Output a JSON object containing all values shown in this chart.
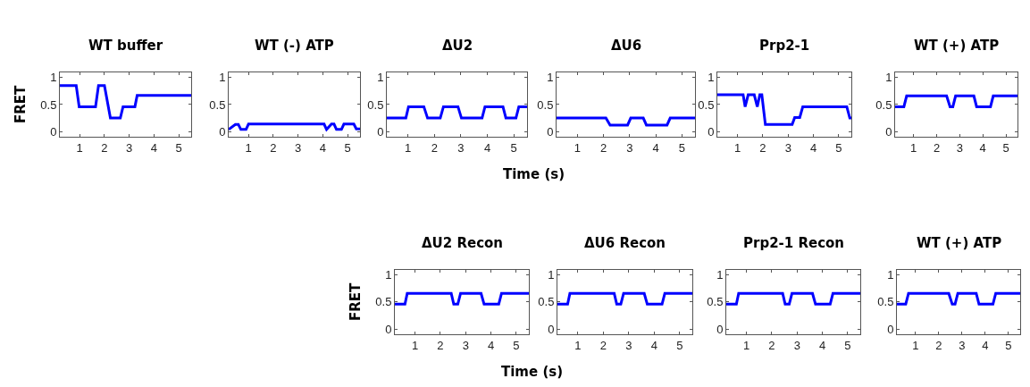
{
  "chart_data": [
    {
      "type": "line",
      "title": "WT buffer",
      "ylabel": "FRET",
      "xlim": [
        0.2,
        5.5
      ],
      "ylim": [
        -0.1,
        1.1
      ],
      "xticks": [
        1,
        2,
        3,
        4,
        5
      ],
      "yticks": [
        0,
        0.5,
        1
      ],
      "x": [
        0.2,
        0.86,
        0.98,
        1.64,
        1.76,
        2.0,
        2.24,
        2.64,
        2.75,
        3.23,
        3.32,
        5.5
      ],
      "series": [
        {
          "color": "#0000ff",
          "values": [
            0.85,
            0.85,
            0.46,
            0.46,
            0.85,
            0.85,
            0.25,
            0.25,
            0.46,
            0.46,
            0.67,
            0.67
          ]
        }
      ]
    },
    {
      "type": "line",
      "title": "WT (-) ATP",
      "xlim": [
        0.2,
        5.5
      ],
      "ylim": [
        -0.1,
        1.1
      ],
      "xticks": [
        1,
        2,
        3,
        4,
        5
      ],
      "yticks": [
        0,
        0.5,
        1
      ],
      "x": [
        0.2,
        0.47,
        0.59,
        0.69,
        0.9,
        1.0,
        4.05,
        4.15,
        4.35,
        4.45,
        4.55,
        4.75,
        4.85,
        5.25,
        5.35,
        5.5
      ],
      "series": [
        {
          "color": "#0000ff",
          "values": [
            0.04,
            0.13,
            0.13,
            0.04,
            0.04,
            0.14,
            0.14,
            0.04,
            0.14,
            0.14,
            0.04,
            0.04,
            0.14,
            0.14,
            0.05,
            0.05
          ]
        }
      ]
    },
    {
      "type": "line",
      "title": "ΔU2",
      "xlim": [
        0.2,
        5.5
      ],
      "ylim": [
        -0.1,
        1.1
      ],
      "xticks": [
        1,
        2,
        3,
        4,
        5
      ],
      "yticks": [
        0,
        0.5,
        1
      ],
      "x": [
        0.2,
        0.92,
        1.02,
        1.6,
        1.74,
        2.22,
        2.34,
        2.89,
        3.02,
        3.8,
        3.91,
        4.59,
        4.7,
        5.08,
        5.19,
        5.5
      ],
      "series": [
        {
          "color": "#0000ff",
          "values": [
            0.25,
            0.25,
            0.46,
            0.46,
            0.25,
            0.25,
            0.46,
            0.46,
            0.25,
            0.25,
            0.46,
            0.46,
            0.25,
            0.25,
            0.46,
            0.46
          ]
        }
      ]
    },
    {
      "type": "line",
      "title": "ΔU6",
      "xlabel": "Time (s)",
      "xlim": [
        0.2,
        5.5
      ],
      "ylim": [
        -0.1,
        1.1
      ],
      "xticks": [
        1,
        2,
        3,
        4,
        5
      ],
      "yticks": [
        0,
        0.5,
        1
      ],
      "x": [
        0.2,
        2.09,
        2.25,
        2.92,
        3.04,
        3.52,
        3.64,
        4.43,
        4.55,
        5.5
      ],
      "series": [
        {
          "color": "#0000ff",
          "values": [
            0.25,
            0.25,
            0.12,
            0.12,
            0.25,
            0.25,
            0.12,
            0.12,
            0.25,
            0.25
          ]
        }
      ]
    },
    {
      "type": "line",
      "title": "Prp2-1",
      "xlim": [
        0.2,
        5.5
      ],
      "ylim": [
        -0.1,
        1.1
      ],
      "xticks": [
        1,
        2,
        3,
        4,
        5
      ],
      "yticks": [
        0,
        0.5,
        1
      ],
      "x": [
        0.2,
        1.22,
        1.3,
        1.42,
        1.66,
        1.78,
        1.88,
        1.96,
        2.1,
        3.16,
        3.26,
        3.46,
        3.58,
        5.32,
        5.44,
        5.5
      ],
      "series": [
        {
          "color": "#0000ff",
          "values": [
            0.68,
            0.68,
            0.46,
            0.68,
            0.68,
            0.46,
            0.68,
            0.68,
            0.13,
            0.13,
            0.26,
            0.26,
            0.46,
            0.46,
            0.25,
            0.25
          ]
        }
      ]
    },
    {
      "type": "line",
      "title": "WT (+) ATP",
      "xlim": [
        0.2,
        5.5
      ],
      "ylim": [
        -0.1,
        1.1
      ],
      "xticks": [
        1,
        2,
        3,
        4,
        5
      ],
      "yticks": [
        0,
        0.5,
        1
      ],
      "x": [
        0.2,
        0.58,
        0.7,
        2.43,
        2.58,
        2.7,
        2.82,
        3.61,
        3.73,
        4.33,
        4.45,
        5.5
      ],
      "series": [
        {
          "color": "#0000ff",
          "values": [
            0.46,
            0.46,
            0.66,
            0.66,
            0.46,
            0.46,
            0.66,
            0.66,
            0.46,
            0.46,
            0.66,
            0.66
          ]
        }
      ]
    },
    {
      "type": "line",
      "title": "ΔU2 Recon",
      "ylabel": "FRET",
      "xlim": [
        0.2,
        5.5
      ],
      "ylim": [
        -0.1,
        1.1
      ],
      "xticks": [
        1,
        2,
        3,
        4,
        5
      ],
      "yticks": [
        0,
        0.5,
        1
      ],
      "x": [
        0.2,
        0.6,
        0.69,
        2.43,
        2.53,
        2.69,
        2.8,
        3.61,
        3.73,
        4.31,
        4.42,
        5.5
      ],
      "series": [
        {
          "color": "#0000ff",
          "values": [
            0.46,
            0.46,
            0.66,
            0.66,
            0.46,
            0.46,
            0.66,
            0.66,
            0.46,
            0.46,
            0.66,
            0.66
          ]
        }
      ]
    },
    {
      "type": "line",
      "title": "ΔU6 Recon",
      "xlabel": "Time (s)",
      "xlim": [
        0.2,
        5.5
      ],
      "ylim": [
        -0.1,
        1.1
      ],
      "xticks": [
        1,
        2,
        3,
        4,
        5
      ],
      "yticks": [
        0,
        0.5,
        1
      ],
      "x": [
        0.2,
        0.6,
        0.69,
        2.43,
        2.53,
        2.69,
        2.8,
        3.61,
        3.73,
        4.31,
        4.42,
        5.5
      ],
      "series": [
        {
          "color": "#0000ff",
          "values": [
            0.46,
            0.46,
            0.66,
            0.66,
            0.46,
            0.46,
            0.66,
            0.66,
            0.46,
            0.46,
            0.66,
            0.66
          ]
        }
      ]
    },
    {
      "type": "line",
      "title": "Prp2-1 Recon",
      "xlim": [
        0.2,
        5.5
      ],
      "ylim": [
        -0.1,
        1.1
      ],
      "xticks": [
        1,
        2,
        3,
        4,
        5
      ],
      "yticks": [
        0,
        0.5,
        1
      ],
      "x": [
        0.2,
        0.6,
        0.69,
        2.43,
        2.53,
        2.69,
        2.8,
        3.61,
        3.73,
        4.31,
        4.42,
        5.5
      ],
      "series": [
        {
          "color": "#0000ff",
          "values": [
            0.46,
            0.46,
            0.66,
            0.66,
            0.46,
            0.46,
            0.66,
            0.66,
            0.46,
            0.46,
            0.66,
            0.66
          ]
        }
      ]
    },
    {
      "type": "line",
      "title": "WT (+) ATP",
      "xlim": [
        0.2,
        5.5
      ],
      "ylim": [
        -0.1,
        1.1
      ],
      "xticks": [
        1,
        2,
        3,
        4,
        5
      ],
      "yticks": [
        0,
        0.5,
        1
      ],
      "x": [
        0.2,
        0.58,
        0.7,
        2.43,
        2.58,
        2.7,
        2.82,
        3.61,
        3.73,
        4.33,
        4.45,
        5.5
      ],
      "series": [
        {
          "color": "#0000ff",
          "values": [
            0.46,
            0.46,
            0.66,
            0.66,
            0.46,
            0.46,
            0.66,
            0.66,
            0.46,
            0.46,
            0.66,
            0.66
          ]
        }
      ]
    }
  ]
}
